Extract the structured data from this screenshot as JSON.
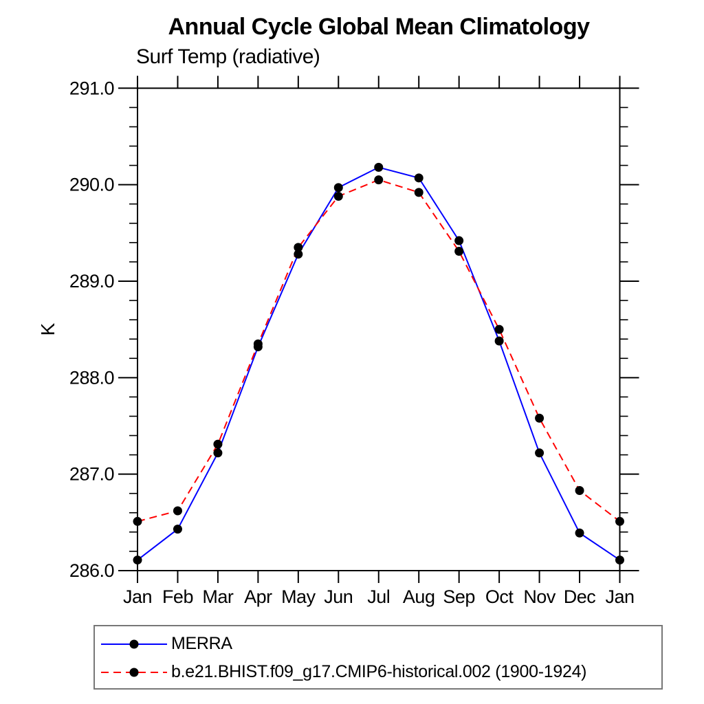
{
  "chart_data": {
    "type": "line",
    "title": "Annual Cycle Global Mean Climatology",
    "subtitle": "Surf Temp (radiative)",
    "xlabel": "",
    "ylabel": "K",
    "units": "K",
    "grid": false,
    "legend_position": "bottom-left",
    "categories": [
      "Jan",
      "Feb",
      "Mar",
      "Apr",
      "May",
      "Jun",
      "Jul",
      "Aug",
      "Sep",
      "Oct",
      "Nov",
      "Dec",
      "Jan"
    ],
    "ylim": [
      286.0,
      291.0
    ],
    "y_minor_step": 0.2,
    "y_ticks": [
      {
        "value": 286.0,
        "label": "286.0"
      },
      {
        "value": 287.0,
        "label": "287.0"
      },
      {
        "value": 288.0,
        "label": "288.0"
      },
      {
        "value": 289.0,
        "label": "289.0"
      },
      {
        "value": 290.0,
        "label": "290.0"
      },
      {
        "value": 291.0,
        "label": "291.0"
      }
    ],
    "series": [
      {
        "name": "MERRA",
        "color": "#0000ff",
        "line_style": "solid",
        "marker": "filled-circle",
        "marker_color": "#000000",
        "values": [
          286.11,
          286.43,
          287.22,
          288.32,
          289.28,
          289.97,
          290.18,
          290.07,
          289.42,
          288.38,
          287.22,
          286.39,
          286.11
        ]
      },
      {
        "name": "b.e21.BHIST.f09_g17.CMIP6-historical.002 (1900-1924)",
        "color": "#ff0000",
        "line_style": "dashed",
        "marker": "filled-circle",
        "marker_color": "#000000",
        "values": [
          286.51,
          286.62,
          287.31,
          288.35,
          289.35,
          289.88,
          290.05,
          289.92,
          289.31,
          288.5,
          287.58,
          286.83,
          286.51
        ]
      }
    ]
  }
}
